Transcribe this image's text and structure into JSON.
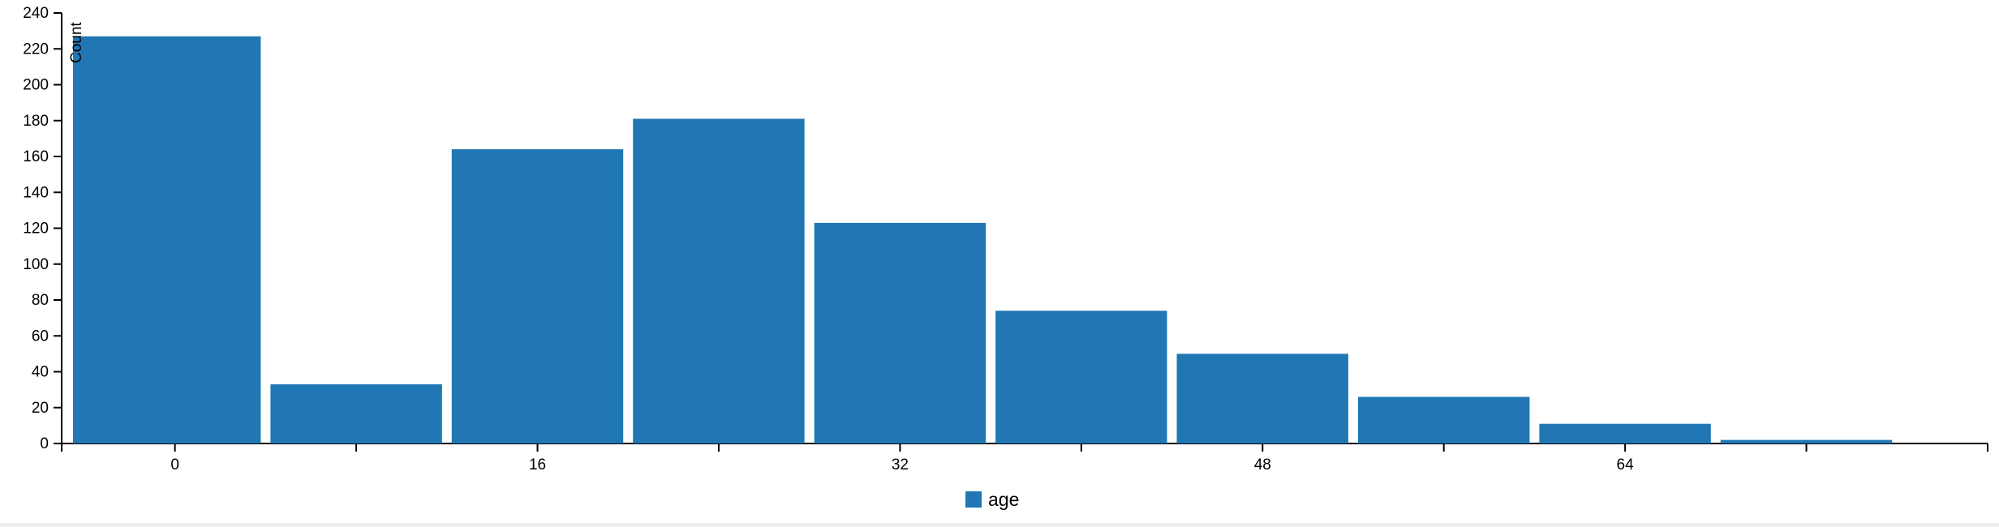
{
  "chart_data": {
    "type": "bar",
    "ylabel": "Count",
    "ylim": [
      0,
      240
    ],
    "y_ticks": [
      0,
      20,
      40,
      60,
      80,
      100,
      120,
      140,
      160,
      180,
      200,
      220,
      240
    ],
    "x_range": [
      -5,
      80
    ],
    "x_ticks": [
      0,
      8,
      16,
      24,
      32,
      40,
      48,
      56,
      64,
      72
    ],
    "x_tick_labels": [
      "0",
      "16",
      "32",
      "48",
      "64"
    ],
    "bin_width": 8,
    "bin_starts": [
      -4,
      4,
      12,
      20,
      28,
      36,
      44,
      52,
      60,
      68
    ],
    "series": [
      {
        "name": "age",
        "color": "#2077b4",
        "values": [
          227,
          33,
          164,
          181,
          123,
          74,
          50,
          26,
          11,
          2
        ]
      }
    ],
    "legend_position": "bottom-center",
    "grid": false
  }
}
